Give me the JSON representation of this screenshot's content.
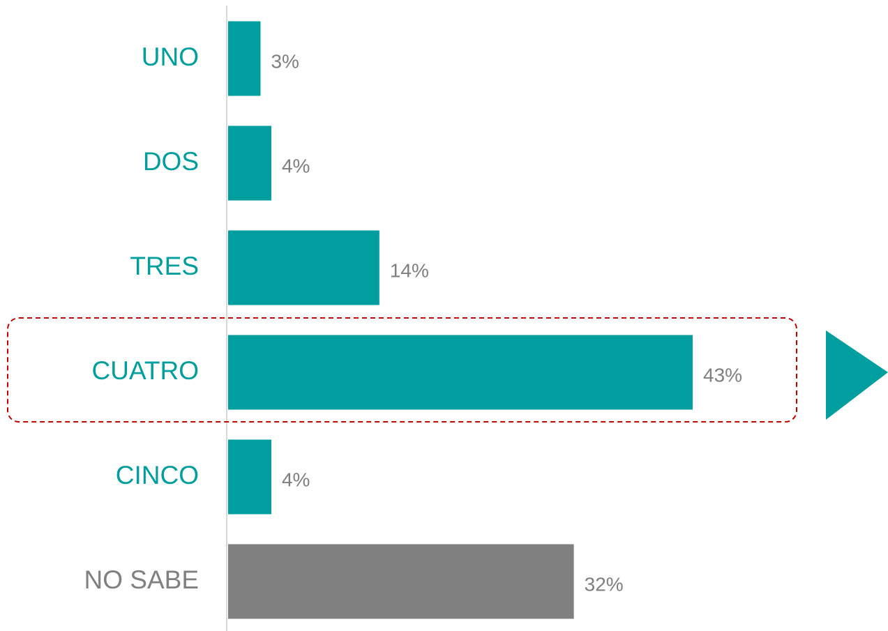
{
  "chart_data": {
    "type": "bar",
    "orientation": "horizontal",
    "categories": [
      "UNO",
      "DOS",
      "TRES",
      "CUATRO",
      "CINCO",
      "NO SABE"
    ],
    "values": [
      3,
      4,
      14,
      43,
      4,
      32
    ],
    "value_labels": [
      "3%",
      "4%",
      "14%",
      "43%",
      "4%",
      "32%"
    ],
    "colors": [
      "#009e9e",
      "#009e9e",
      "#009e9e",
      "#009e9e",
      "#009e9e",
      "#808080"
    ],
    "grid": false
  }
}
